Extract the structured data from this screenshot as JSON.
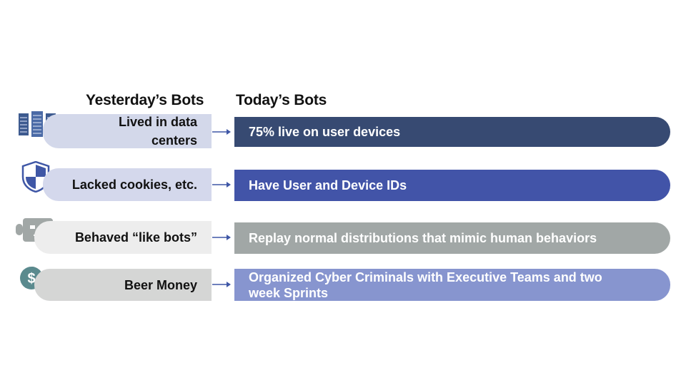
{
  "headers": {
    "yesterday": "Yesterday’s Bots",
    "today": "Today’s Bots"
  },
  "rows": [
    {
      "left": "Lived in data centers",
      "right": "75% live on user devices",
      "icon": "server-icon",
      "left_color": "#d3d8ea",
      "right_color": "#374a72"
    },
    {
      "left": "Lacked cookies, etc.",
      "right": "Have User and Device IDs",
      "icon": "shield-icon",
      "left_color": "#d4d8ec",
      "right_color": "#4254a8"
    },
    {
      "left": "Behaved “like bots”",
      "right": "Replay normal distributions that mimic human behaviors",
      "icon": "robot-icon",
      "left_color": "#ededed",
      "right_color": "#a1a7a6"
    },
    {
      "left": "Beer Money",
      "right": "Organized Cyber Criminals with Executive Teams and two week Sprints",
      "icon": "dollar-coin-icon",
      "left_color": "#d5d6d5",
      "right_color": "#8795cf"
    }
  ]
}
